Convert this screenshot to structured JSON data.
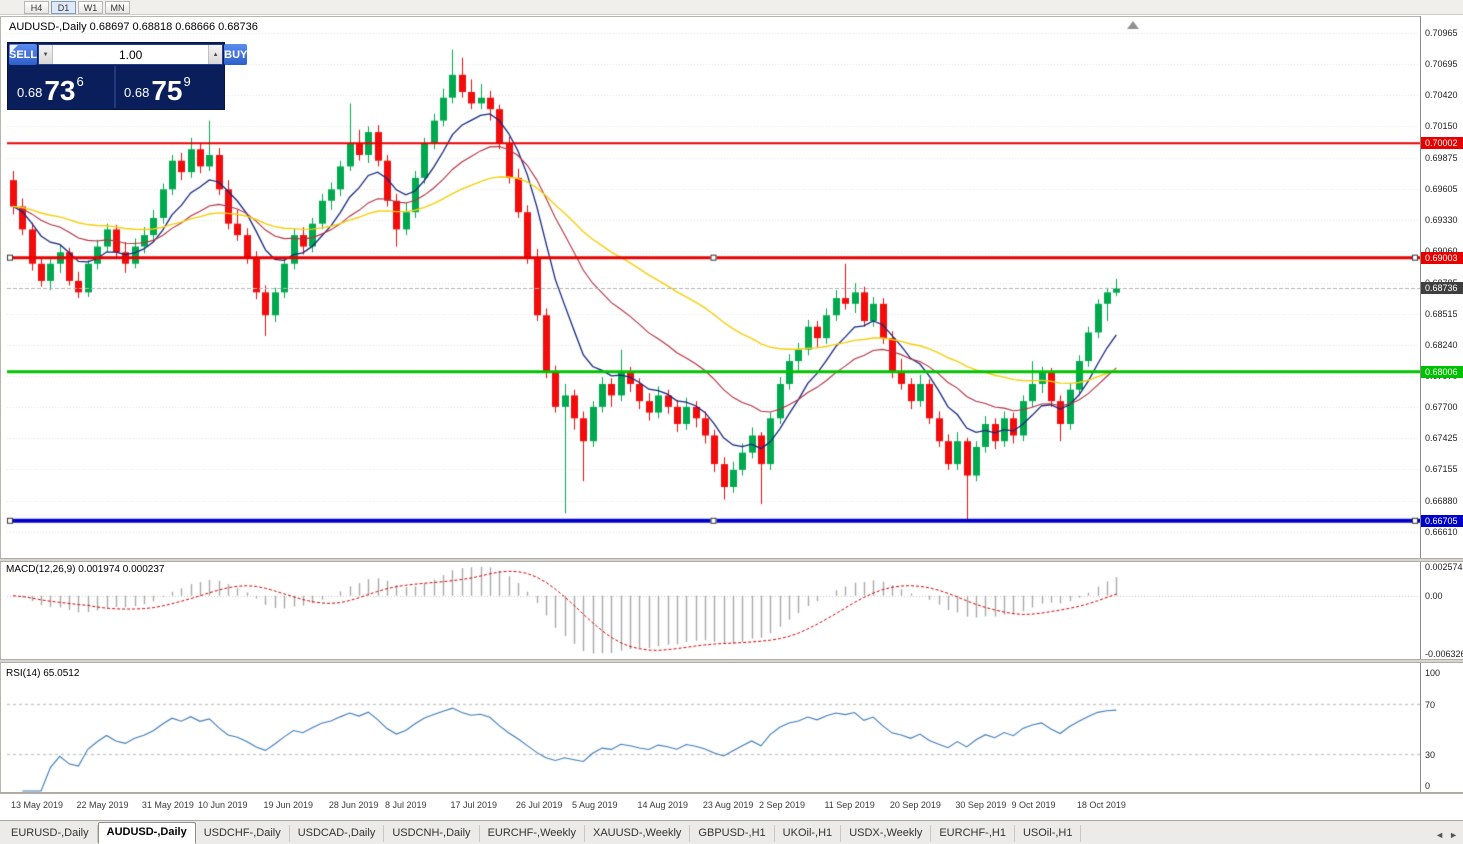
{
  "toolbar": {
    "timeframes": [
      {
        "label": "H4",
        "active": false
      },
      {
        "label": "D1",
        "active": true
      },
      {
        "label": "W1",
        "active": false
      },
      {
        "label": "MN",
        "active": false
      }
    ]
  },
  "chart": {
    "symbol": "AUDUSD-",
    "period": "Daily",
    "title": "AUDUSD-,Daily 0.68697 0.68818 0.68666 0.68736"
  },
  "trade_panel": {
    "sell_label": "SELL",
    "buy_label": "BUY",
    "volume": "1.00",
    "sell_price": {
      "prefix": "0.68",
      "big": "73",
      "sup": "6"
    },
    "buy_price": {
      "prefix": "0.68",
      "big": "75",
      "sup": "9"
    }
  },
  "icons": {
    "volume_up": "▲",
    "volume_down": "▼",
    "tab_scroll_left": "◄",
    "tab_scroll_right": "►"
  },
  "chart_data": {
    "type": "candlestick",
    "symbol": "AUDUSD",
    "timeframe": "Daily",
    "candle_colors": {
      "bull": "#00A94F",
      "bear": "#F20C0C"
    },
    "y_axis": {
      "min": 0.6638,
      "max": 0.71105
    },
    "y_ticks": [
      "0.70965",
      "0.70695",
      "0.70420",
      "0.70150",
      "0.69875",
      "0.69605",
      "0.69330",
      "0.69060",
      "0.68785",
      "0.68515",
      "0.68240",
      "0.67970",
      "0.67700",
      "0.67425",
      "0.67155",
      "0.66880",
      "0.66610"
    ],
    "x_labels": [
      {
        "text": "13 May 2019",
        "i": 0
      },
      {
        "text": "22 May 2019",
        "i": 7
      },
      {
        "text": "31 May 2019",
        "i": 14
      },
      {
        "text": "10 Jun 2019",
        "i": 20
      },
      {
        "text": "19 Jun 2019",
        "i": 27
      },
      {
        "text": "28 Jun 2019",
        "i": 34
      },
      {
        "text": "8 Jul 2019",
        "i": 40
      },
      {
        "text": "17 Jul 2019",
        "i": 47
      },
      {
        "text": "26 Jul 2019",
        "i": 54
      },
      {
        "text": "5 Aug 2019",
        "i": 60
      },
      {
        "text": "14 Aug 2019",
        "i": 67
      },
      {
        "text": "23 Aug 2019",
        "i": 74
      },
      {
        "text": "2 Sep 2019",
        "i": 80
      },
      {
        "text": "11 Sep 2019",
        "i": 87
      },
      {
        "text": "20 Sep 2019",
        "i": 94
      },
      {
        "text": "30 Sep 2019",
        "i": 101
      },
      {
        "text": "9 Oct 2019",
        "i": 107
      },
      {
        "text": "18 Oct 2019",
        "i": 114
      }
    ],
    "ohlc": [
      [
        0.6968,
        0.6976,
        0.6938,
        0.6945
      ],
      [
        0.6945,
        0.6952,
        0.692,
        0.6925
      ],
      [
        0.6925,
        0.6931,
        0.6889,
        0.6895
      ],
      [
        0.6895,
        0.6901,
        0.6875,
        0.688
      ],
      [
        0.688,
        0.6899,
        0.6872,
        0.6895
      ],
      [
        0.6895,
        0.6911,
        0.6887,
        0.6905
      ],
      [
        0.6905,
        0.6909,
        0.6876,
        0.688
      ],
      [
        0.688,
        0.6888,
        0.6865,
        0.687
      ],
      [
        0.687,
        0.6898,
        0.6866,
        0.6895
      ],
      [
        0.6895,
        0.6916,
        0.689,
        0.691
      ],
      [
        0.691,
        0.693,
        0.6905,
        0.6925
      ],
      [
        0.6925,
        0.6929,
        0.6899,
        0.6905
      ],
      [
        0.6905,
        0.6914,
        0.6887,
        0.6895
      ],
      [
        0.6895,
        0.6917,
        0.6891,
        0.691
      ],
      [
        0.691,
        0.6927,
        0.6904,
        0.692
      ],
      [
        0.692,
        0.6942,
        0.6915,
        0.6935
      ],
      [
        0.6935,
        0.6965,
        0.693,
        0.696
      ],
      [
        0.696,
        0.699,
        0.6955,
        0.6985
      ],
      [
        0.6985,
        0.6992,
        0.6968,
        0.6975
      ],
      [
        0.6975,
        0.7005,
        0.697,
        0.6995
      ],
      [
        0.6995,
        0.7,
        0.6974,
        0.698
      ],
      [
        0.698,
        0.702,
        0.6976,
        0.699
      ],
      [
        0.699,
        0.6996,
        0.6955,
        0.696
      ],
      [
        0.696,
        0.6968,
        0.6925,
        0.693
      ],
      [
        0.693,
        0.6942,
        0.6915,
        0.692
      ],
      [
        0.692,
        0.6926,
        0.6895,
        0.69
      ],
      [
        0.69,
        0.6906,
        0.6864,
        0.687
      ],
      [
        0.687,
        0.6876,
        0.6832,
        0.685
      ],
      [
        0.685,
        0.6874,
        0.6844,
        0.687
      ],
      [
        0.687,
        0.6901,
        0.6865,
        0.6895
      ],
      [
        0.6895,
        0.6926,
        0.689,
        0.692
      ],
      [
        0.692,
        0.6927,
        0.6903,
        0.691
      ],
      [
        0.691,
        0.6935,
        0.6905,
        0.693
      ],
      [
        0.693,
        0.6956,
        0.6925,
        0.695
      ],
      [
        0.695,
        0.6966,
        0.6942,
        0.696
      ],
      [
        0.696,
        0.6985,
        0.6954,
        0.698
      ],
      [
        0.698,
        0.7035,
        0.6976,
        0.7
      ],
      [
        0.7,
        0.7012,
        0.6985,
        0.699
      ],
      [
        0.699,
        0.7015,
        0.6983,
        0.701
      ],
      [
        0.701,
        0.7016,
        0.698,
        0.6985
      ],
      [
        0.6985,
        0.699,
        0.6945,
        0.695
      ],
      [
        0.695,
        0.6956,
        0.691,
        0.6925
      ],
      [
        0.6925,
        0.6948,
        0.692,
        0.694
      ],
      [
        0.694,
        0.6976,
        0.6935,
        0.697
      ],
      [
        0.697,
        0.7005,
        0.6965,
        0.7
      ],
      [
        0.7,
        0.7026,
        0.6995,
        0.702
      ],
      [
        0.702,
        0.7048,
        0.7015,
        0.704
      ],
      [
        0.704,
        0.7082,
        0.7035,
        0.706
      ],
      [
        0.706,
        0.7075,
        0.704,
        0.7045
      ],
      [
        0.7045,
        0.7056,
        0.703,
        0.7035
      ],
      [
        0.7035,
        0.7052,
        0.703,
        0.704
      ],
      [
        0.704,
        0.7046,
        0.702,
        0.703
      ],
      [
        0.703,
        0.7034,
        0.6995,
        0.7
      ],
      [
        0.7,
        0.7006,
        0.6965,
        0.697
      ],
      [
        0.697,
        0.6978,
        0.6935,
        0.694
      ],
      [
        0.694,
        0.6946,
        0.6895,
        0.69
      ],
      [
        0.69,
        0.6908,
        0.6845,
        0.685
      ],
      [
        0.685,
        0.6856,
        0.6795,
        0.68
      ],
      [
        0.68,
        0.6806,
        0.6765,
        0.677
      ],
      [
        0.677,
        0.679,
        0.6677,
        0.678
      ],
      [
        0.678,
        0.6785,
        0.675,
        0.676
      ],
      [
        0.676,
        0.6766,
        0.6705,
        0.674
      ],
      [
        0.674,
        0.6775,
        0.6735,
        0.677
      ],
      [
        0.677,
        0.6796,
        0.6765,
        0.679
      ],
      [
        0.679,
        0.6795,
        0.677,
        0.678
      ],
      [
        0.678,
        0.682,
        0.6775,
        0.68
      ],
      [
        0.68,
        0.6805,
        0.6783,
        0.679
      ],
      [
        0.679,
        0.6795,
        0.6768,
        0.6775
      ],
      [
        0.6775,
        0.6782,
        0.6758,
        0.6765
      ],
      [
        0.6765,
        0.6788,
        0.676,
        0.678
      ],
      [
        0.678,
        0.6785,
        0.6764,
        0.677
      ],
      [
        0.677,
        0.6776,
        0.6748,
        0.6755
      ],
      [
        0.6755,
        0.6778,
        0.675,
        0.677
      ],
      [
        0.677,
        0.6775,
        0.6752,
        0.676
      ],
      [
        0.676,
        0.6766,
        0.6738,
        0.6745
      ],
      [
        0.6745,
        0.675,
        0.6713,
        0.672
      ],
      [
        0.672,
        0.6726,
        0.6689,
        0.67
      ],
      [
        0.67,
        0.6722,
        0.6695,
        0.6715
      ],
      [
        0.6715,
        0.6738,
        0.671,
        0.673
      ],
      [
        0.673,
        0.6752,
        0.6725,
        0.6745
      ],
      [
        0.6745,
        0.6748,
        0.6685,
        0.672
      ],
      [
        0.672,
        0.6765,
        0.6715,
        0.676
      ],
      [
        0.676,
        0.6796,
        0.6755,
        0.679
      ],
      [
        0.679,
        0.6816,
        0.6785,
        0.681
      ],
      [
        0.681,
        0.6826,
        0.68,
        0.682
      ],
      [
        0.682,
        0.6846,
        0.6815,
        0.684
      ],
      [
        0.684,
        0.6845,
        0.6822,
        0.683
      ],
      [
        0.683,
        0.6856,
        0.6825,
        0.685
      ],
      [
        0.685,
        0.6872,
        0.6845,
        0.6865
      ],
      [
        0.6865,
        0.6895,
        0.6855,
        0.686
      ],
      [
        0.686,
        0.6878,
        0.6852,
        0.687
      ],
      [
        0.687,
        0.6875,
        0.684,
        0.6845
      ],
      [
        0.6845,
        0.6866,
        0.684,
        0.686
      ],
      [
        0.686,
        0.6865,
        0.6825,
        0.683
      ],
      [
        0.683,
        0.6836,
        0.6795,
        0.68
      ],
      [
        0.68,
        0.6812,
        0.6785,
        0.679
      ],
      [
        0.679,
        0.6795,
        0.6768,
        0.6775
      ],
      [
        0.6775,
        0.6798,
        0.677,
        0.679
      ],
      [
        0.679,
        0.6794,
        0.6755,
        0.676
      ],
      [
        0.676,
        0.6766,
        0.6735,
        0.674
      ],
      [
        0.674,
        0.6746,
        0.6715,
        0.672
      ],
      [
        0.672,
        0.6748,
        0.6715,
        0.674
      ],
      [
        0.674,
        0.6743,
        0.6672,
        0.671
      ],
      [
        0.671,
        0.674,
        0.6705,
        0.6735
      ],
      [
        0.6735,
        0.6762,
        0.673,
        0.6755
      ],
      [
        0.6755,
        0.676,
        0.6733,
        0.674
      ],
      [
        0.674,
        0.6766,
        0.6735,
        0.676
      ],
      [
        0.676,
        0.6765,
        0.6738,
        0.6745
      ],
      [
        0.6745,
        0.678,
        0.674,
        0.6775
      ],
      [
        0.6775,
        0.681,
        0.677,
        0.679
      ],
      [
        0.679,
        0.6805,
        0.6782,
        0.68
      ],
      [
        0.68,
        0.6804,
        0.677,
        0.6775
      ],
      [
        0.6775,
        0.678,
        0.674,
        0.6755
      ],
      [
        0.6755,
        0.679,
        0.675,
        0.6785
      ],
      [
        0.6785,
        0.6815,
        0.678,
        0.681
      ],
      [
        0.681,
        0.684,
        0.6805,
        0.6835
      ],
      [
        0.6835,
        0.6864,
        0.683,
        0.686
      ],
      [
        0.686,
        0.6874,
        0.6845,
        0.687
      ],
      [
        0.68697,
        0.68818,
        0.68666,
        0.68736
      ]
    ],
    "moving_averages": [
      {
        "period": 8,
        "color": "#15267E",
        "width": 1.3
      },
      {
        "period": 20,
        "color": "#B23040",
        "width": 1.1
      },
      {
        "period": 45,
        "color": "#F5CE0A",
        "width": 1.4
      }
    ],
    "hlines": [
      {
        "price": 0.70002,
        "label": "0.70002",
        "color": "#E60000",
        "width": 2,
        "handles": false
      },
      {
        "price": 0.69003,
        "label": "0.69003",
        "color": "#E60000",
        "width": 3,
        "handles": true
      },
      {
        "price": 0.68006,
        "label": "0.68006",
        "color": "#00C100",
        "width": 3,
        "handles": false
      },
      {
        "price": 0.66705,
        "label": "0.66705",
        "color": "#0000CC",
        "width": 4,
        "handles": true
      }
    ],
    "current_price": {
      "value": 0.68736,
      "label": "0.68736",
      "color": "#3F3F3F"
    },
    "indicators": {
      "macd": {
        "label": "MACD(12,26,9) 0.001974 0.000237",
        "fast": 12,
        "slow": 26,
        "signal": 9,
        "histogram_color": "#A9A9A9",
        "signal_color": "#D40000",
        "scale_labels": {
          "top": "0.002574",
          "zero": "0.00",
          "bottom": "-0.006326"
        }
      },
      "rsi": {
        "label": "RSI(14) 65.0512",
        "period": 14,
        "value": "65.0512",
        "color": "#3E7AB8",
        "levels": [
          100,
          70,
          30,
          0
        ],
        "level_lines": [
          70,
          30
        ]
      }
    }
  },
  "tabs": [
    {
      "label": "EURUSD-,Daily",
      "active": false
    },
    {
      "label": "AUDUSD-,Daily",
      "active": true
    },
    {
      "label": "USDCHF-,Daily",
      "active": false
    },
    {
      "label": "USDCAD-,Daily",
      "active": false
    },
    {
      "label": "USDCNH-,Daily",
      "active": false
    },
    {
      "label": "EURCHF-,Weekly",
      "active": false
    },
    {
      "label": "XAUUSD-,Weekly",
      "active": false
    },
    {
      "label": "GBPUSD-,H1",
      "active": false
    },
    {
      "label": "UKOil-,H1",
      "active": false
    },
    {
      "label": "USDX-,Weekly",
      "active": false
    },
    {
      "label": "EURCHF-,H1",
      "active": false
    },
    {
      "label": "USOil-,H1",
      "active": false
    }
  ]
}
